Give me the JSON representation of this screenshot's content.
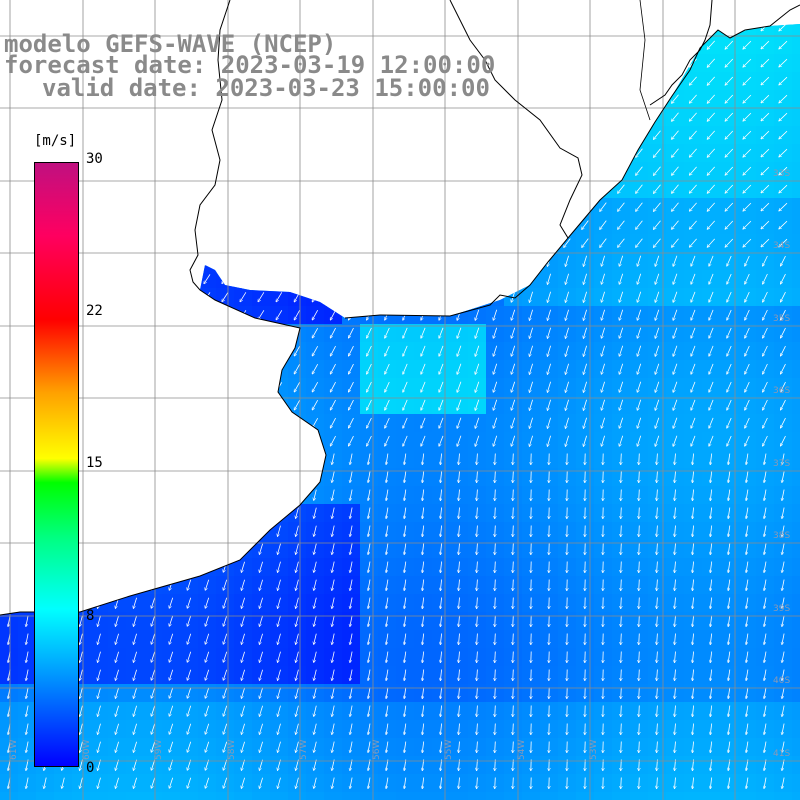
{
  "title": {
    "line1": "modelo GEFS-WAVE (NCEP)",
    "line2": "forecast date: 2023-03-19 12:00:00",
    "line3": "valid date: 2023-03-23 15:00:00"
  },
  "colorbar": {
    "unit": "[m/s]",
    "range": [
      0,
      30
    ],
    "ticks": [
      "30",
      "22",
      "15",
      "8",
      "0"
    ],
    "tick_values": [
      30,
      22,
      15,
      8,
      0
    ],
    "colors": [
      "#0000ff",
      "#00b4ff",
      "#00ffff",
      "#00ff80",
      "#00ff00",
      "#ffff00",
      "#ffa000",
      "#ff0000",
      "#ff0060",
      "#c01080"
    ]
  },
  "map": {
    "variable": "wind speed and direction",
    "land_color": "#ffffff",
    "coastline_color": "#000000",
    "grid_color": "#808080",
    "wind_speed_range_shown": [
      3,
      9
    ],
    "arrow_color": "#ffffff",
    "lat_labels": [
      "33S",
      "34S",
      "35S",
      "36S",
      "37S",
      "38S",
      "39S",
      "40S",
      "41S"
    ],
    "lon_labels": [
      "61W",
      "60W",
      "59W",
      "58W",
      "57W",
      "56W",
      "55W",
      "54W",
      "53W"
    ]
  }
}
